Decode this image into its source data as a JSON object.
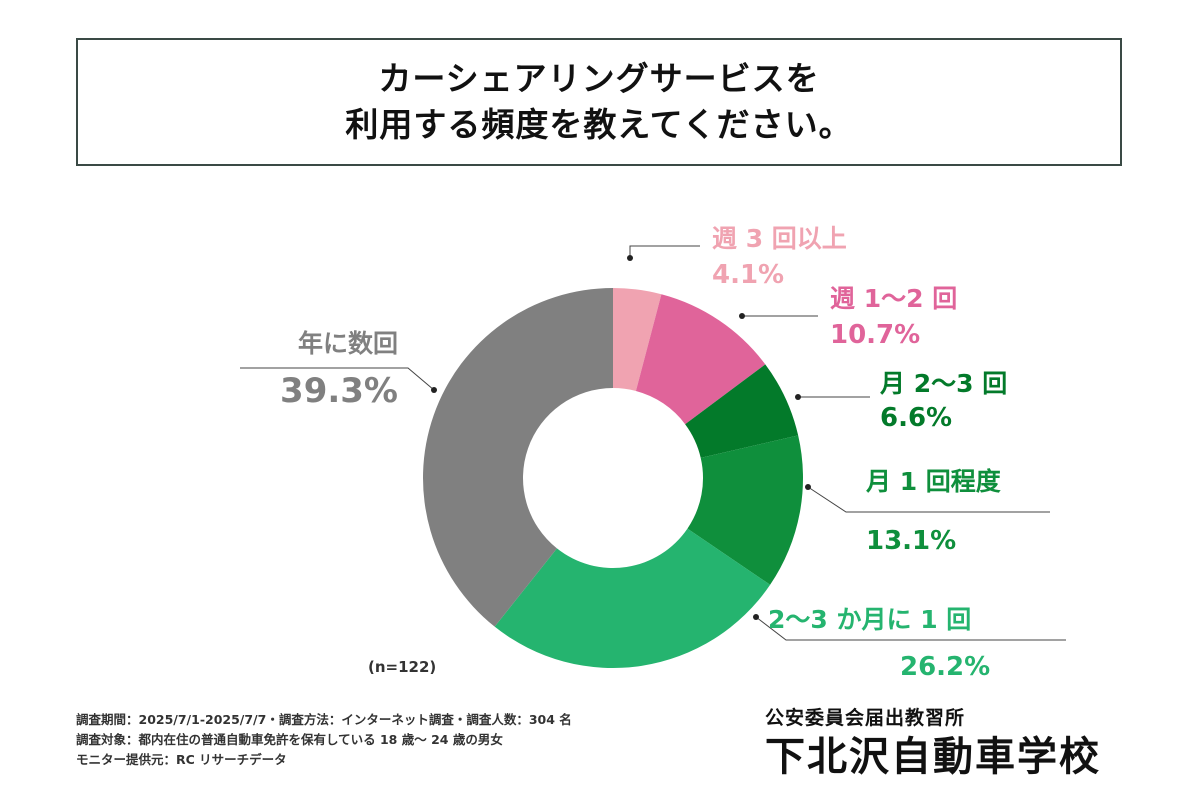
{
  "title": {
    "line1": "カーシェアリングサービスを",
    "line2": "利用する頻度を教えてください。"
  },
  "chart_data": {
    "type": "pie",
    "style": "donut",
    "categories": [
      "週 3 回以上",
      "週 1〜2 回",
      "月 2〜3 回",
      "月 1 回程度",
      "2〜3 か月に 1 回",
      "年に数回"
    ],
    "values": [
      4.1,
      10.7,
      6.6,
      13.1,
      26.2,
      39.3
    ],
    "labels": [
      "4.1%",
      "10.7%",
      "6.6%",
      "13.1%",
      "26.2%",
      "39.3%"
    ],
    "colors": [
      "#f0a3b1",
      "#e0649a",
      "#037a2a",
      "#0f8f3c",
      "#25b46f",
      "#808080"
    ],
    "label_colors": [
      "#f0a3b1",
      "#e0649a",
      "#037a2a",
      "#0f8f3c",
      "#25b46f",
      "#808080"
    ]
  },
  "sample_size": "(n=122)",
  "footnotes": [
    "調査期間：2025/7/1-2025/7/7・調査方法：インターネット調査・調査人数：304 名",
    "調査対象：都内在住の普通自動車免許を保有している 18 歳〜 24 歳の男女",
    "モニター提供元：RC リサーチデータ"
  ],
  "school": {
    "subtitle": "公安委員会届出教習所",
    "name": "下北沢自動車学校"
  }
}
